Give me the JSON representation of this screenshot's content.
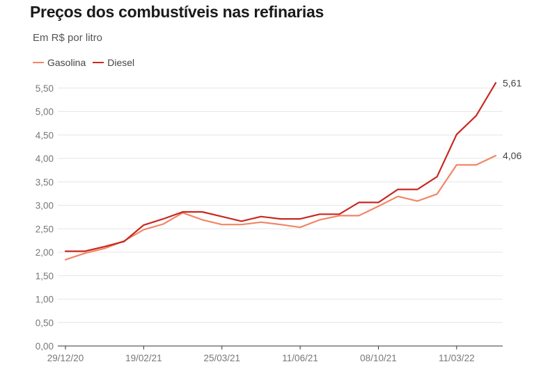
{
  "header": {
    "title": "Preços dos combustíveis nas refinarias",
    "subtitle": "Em R$ por litro"
  },
  "colors": {
    "gasolina": "#f28565",
    "diesel": "#c8281f",
    "grid": "#e6e6e6",
    "axis": "#333333"
  },
  "chart_data": {
    "type": "line",
    "title": "Preços dos combustíveis nas refinarias",
    "subtitle": "Em R$ por litro",
    "xlabel": "",
    "ylabel": "",
    "ylim": [
      0,
      5.6
    ],
    "yticks": [
      "0,00",
      "0,50",
      "1,00",
      "1,50",
      "2,00",
      "2,50",
      "3,00",
      "3,50",
      "4,00",
      "4,50",
      "5,00",
      "5,50"
    ],
    "xtick_labels": [
      "29/12/20",
      "19/02/21",
      "25/03/21",
      "11/06/21",
      "08/10/21",
      "11/03/22"
    ],
    "xtick_index": [
      0,
      4,
      8,
      12,
      16,
      20
    ],
    "grid": true,
    "legend_position": "top-left",
    "series": [
      {
        "name": "Gasolina",
        "values": [
          1.84,
          1.98,
          2.08,
          2.24,
          2.48,
          2.6,
          2.84,
          2.69,
          2.59,
          2.59,
          2.64,
          2.59,
          2.53,
          2.69,
          2.78,
          2.78,
          2.98,
          3.19,
          3.09,
          3.24,
          3.86,
          3.86,
          4.06
        ],
        "end_label": "4,06"
      },
      {
        "name": "Diesel",
        "values": [
          2.02,
          2.02,
          2.12,
          2.23,
          2.58,
          2.71,
          2.86,
          2.86,
          2.76,
          2.66,
          2.76,
          2.71,
          2.71,
          2.81,
          2.81,
          3.06,
          3.06,
          3.34,
          3.34,
          3.61,
          4.51,
          4.91,
          5.61
        ],
        "end_label": "5,61"
      }
    ]
  }
}
